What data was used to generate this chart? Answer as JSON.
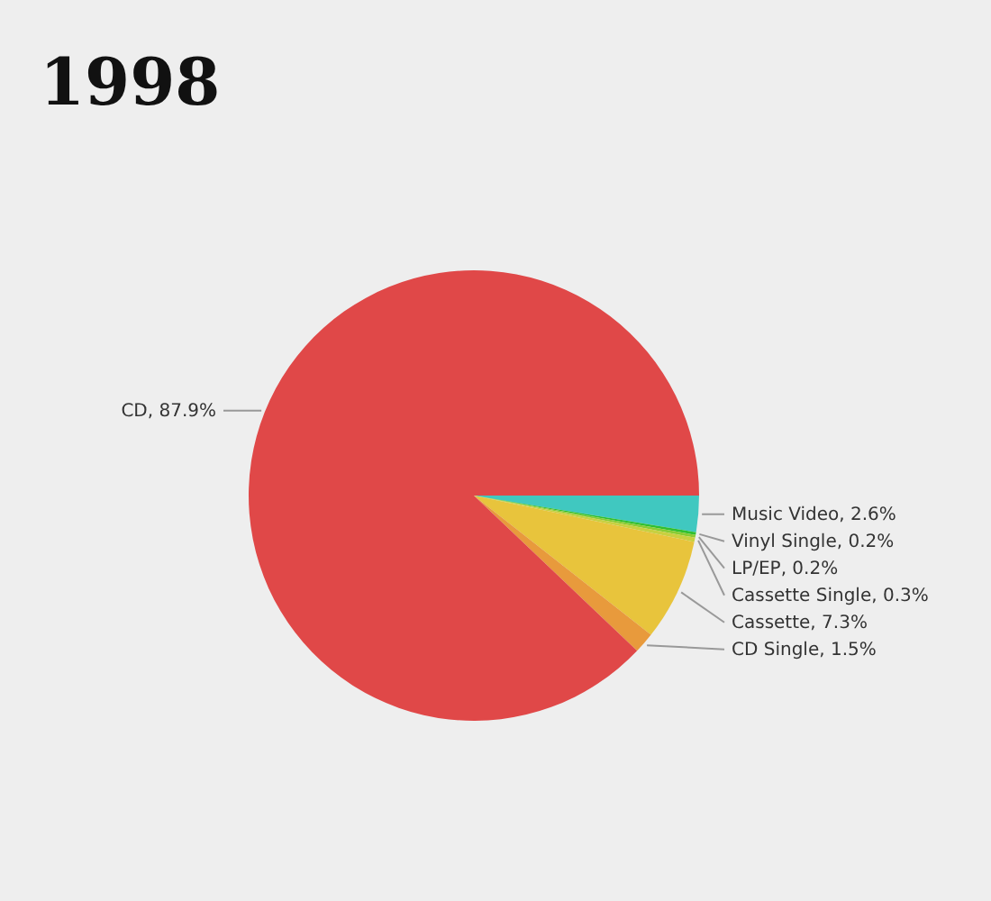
{
  "chart_data": {
    "type": "pie",
    "title": "1998",
    "categories": [
      "Music Video",
      "Vinyl Single",
      "LP/EP",
      "Cassette Single",
      "Cassette",
      "CD Single",
      "CD"
    ],
    "values": [
      2.6,
      0.2,
      0.2,
      0.3,
      7.3,
      1.5,
      87.9
    ],
    "colors": [
      "#40c8c0",
      "#30c030",
      "#88cc33",
      "#c8d040",
      "#e8c43c",
      "#e89a3c",
      "#e04848"
    ],
    "value_labels": [
      "2.6%",
      "0.2%",
      "0.2%",
      "0.3%",
      "7.3%",
      "1.5%",
      "87.9%"
    ]
  }
}
